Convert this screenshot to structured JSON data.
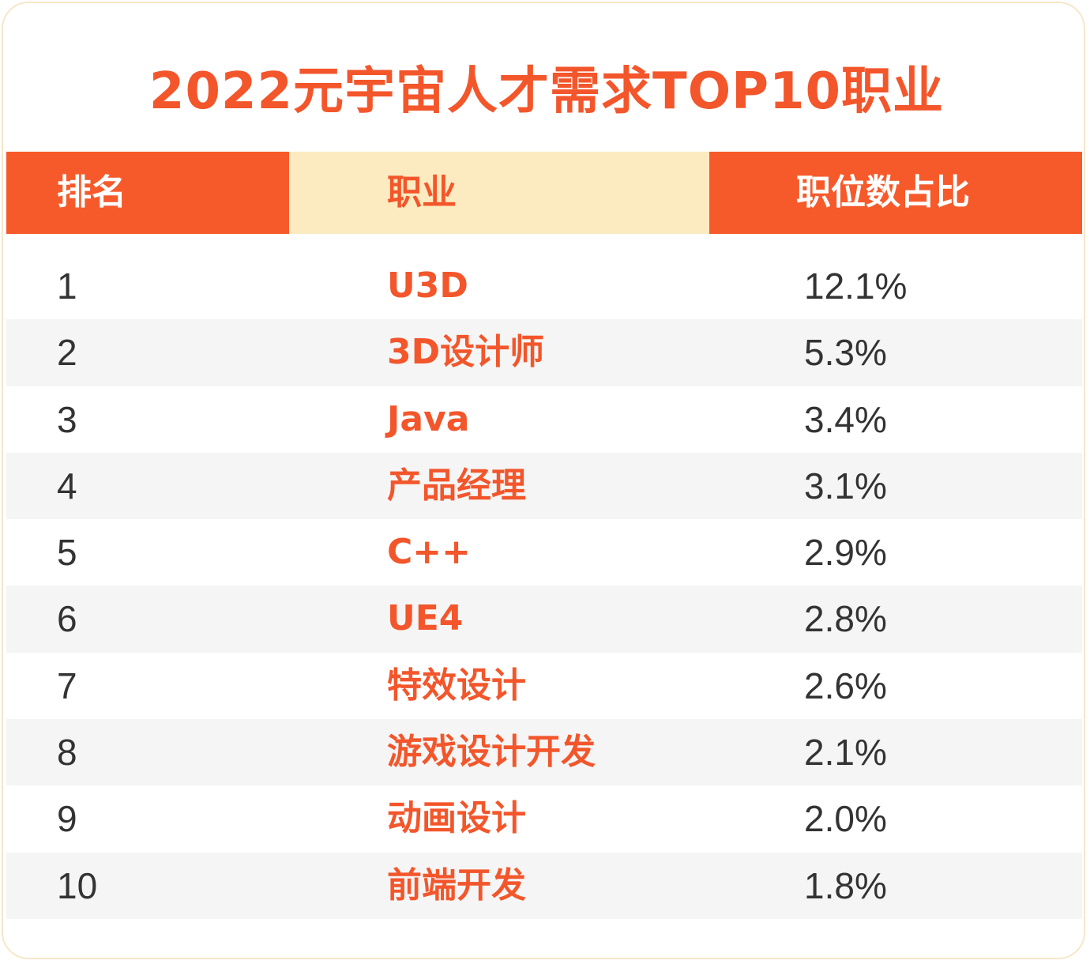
{
  "chart_data": {
    "type": "table",
    "title": "2022元宇宙人才需求TOP10职业",
    "columns": [
      "排名",
      "职业",
      "职位数占比"
    ],
    "rows": [
      {
        "rank": "1",
        "job": "U3D",
        "share": "12.1%"
      },
      {
        "rank": "2",
        "job": "3D设计师",
        "share": "5.3%"
      },
      {
        "rank": "3",
        "job": "Java",
        "share": "3.4%"
      },
      {
        "rank": "4",
        "job": "产品经理",
        "share": "3.1%"
      },
      {
        "rank": "5",
        "job": "C++",
        "share": "2.9%"
      },
      {
        "rank": "6",
        "job": "UE4",
        "share": "2.8%"
      },
      {
        "rank": "7",
        "job": "特效设计",
        "share": "2.6%"
      },
      {
        "rank": "8",
        "job": "游戏设计开发",
        "share": "2.1%"
      },
      {
        "rank": "9",
        "job": "动画设计",
        "share": "2.0%"
      },
      {
        "rank": "10",
        "job": "前端开发",
        "share": "1.8%"
      }
    ]
  },
  "colors": {
    "accent": "#f65a2b",
    "title": "#f3562b",
    "header_middle_bg": "#fcebc0",
    "stripe": "#f5f5f5",
    "card_border": "#f6e7c8",
    "body_text": "#333333"
  }
}
